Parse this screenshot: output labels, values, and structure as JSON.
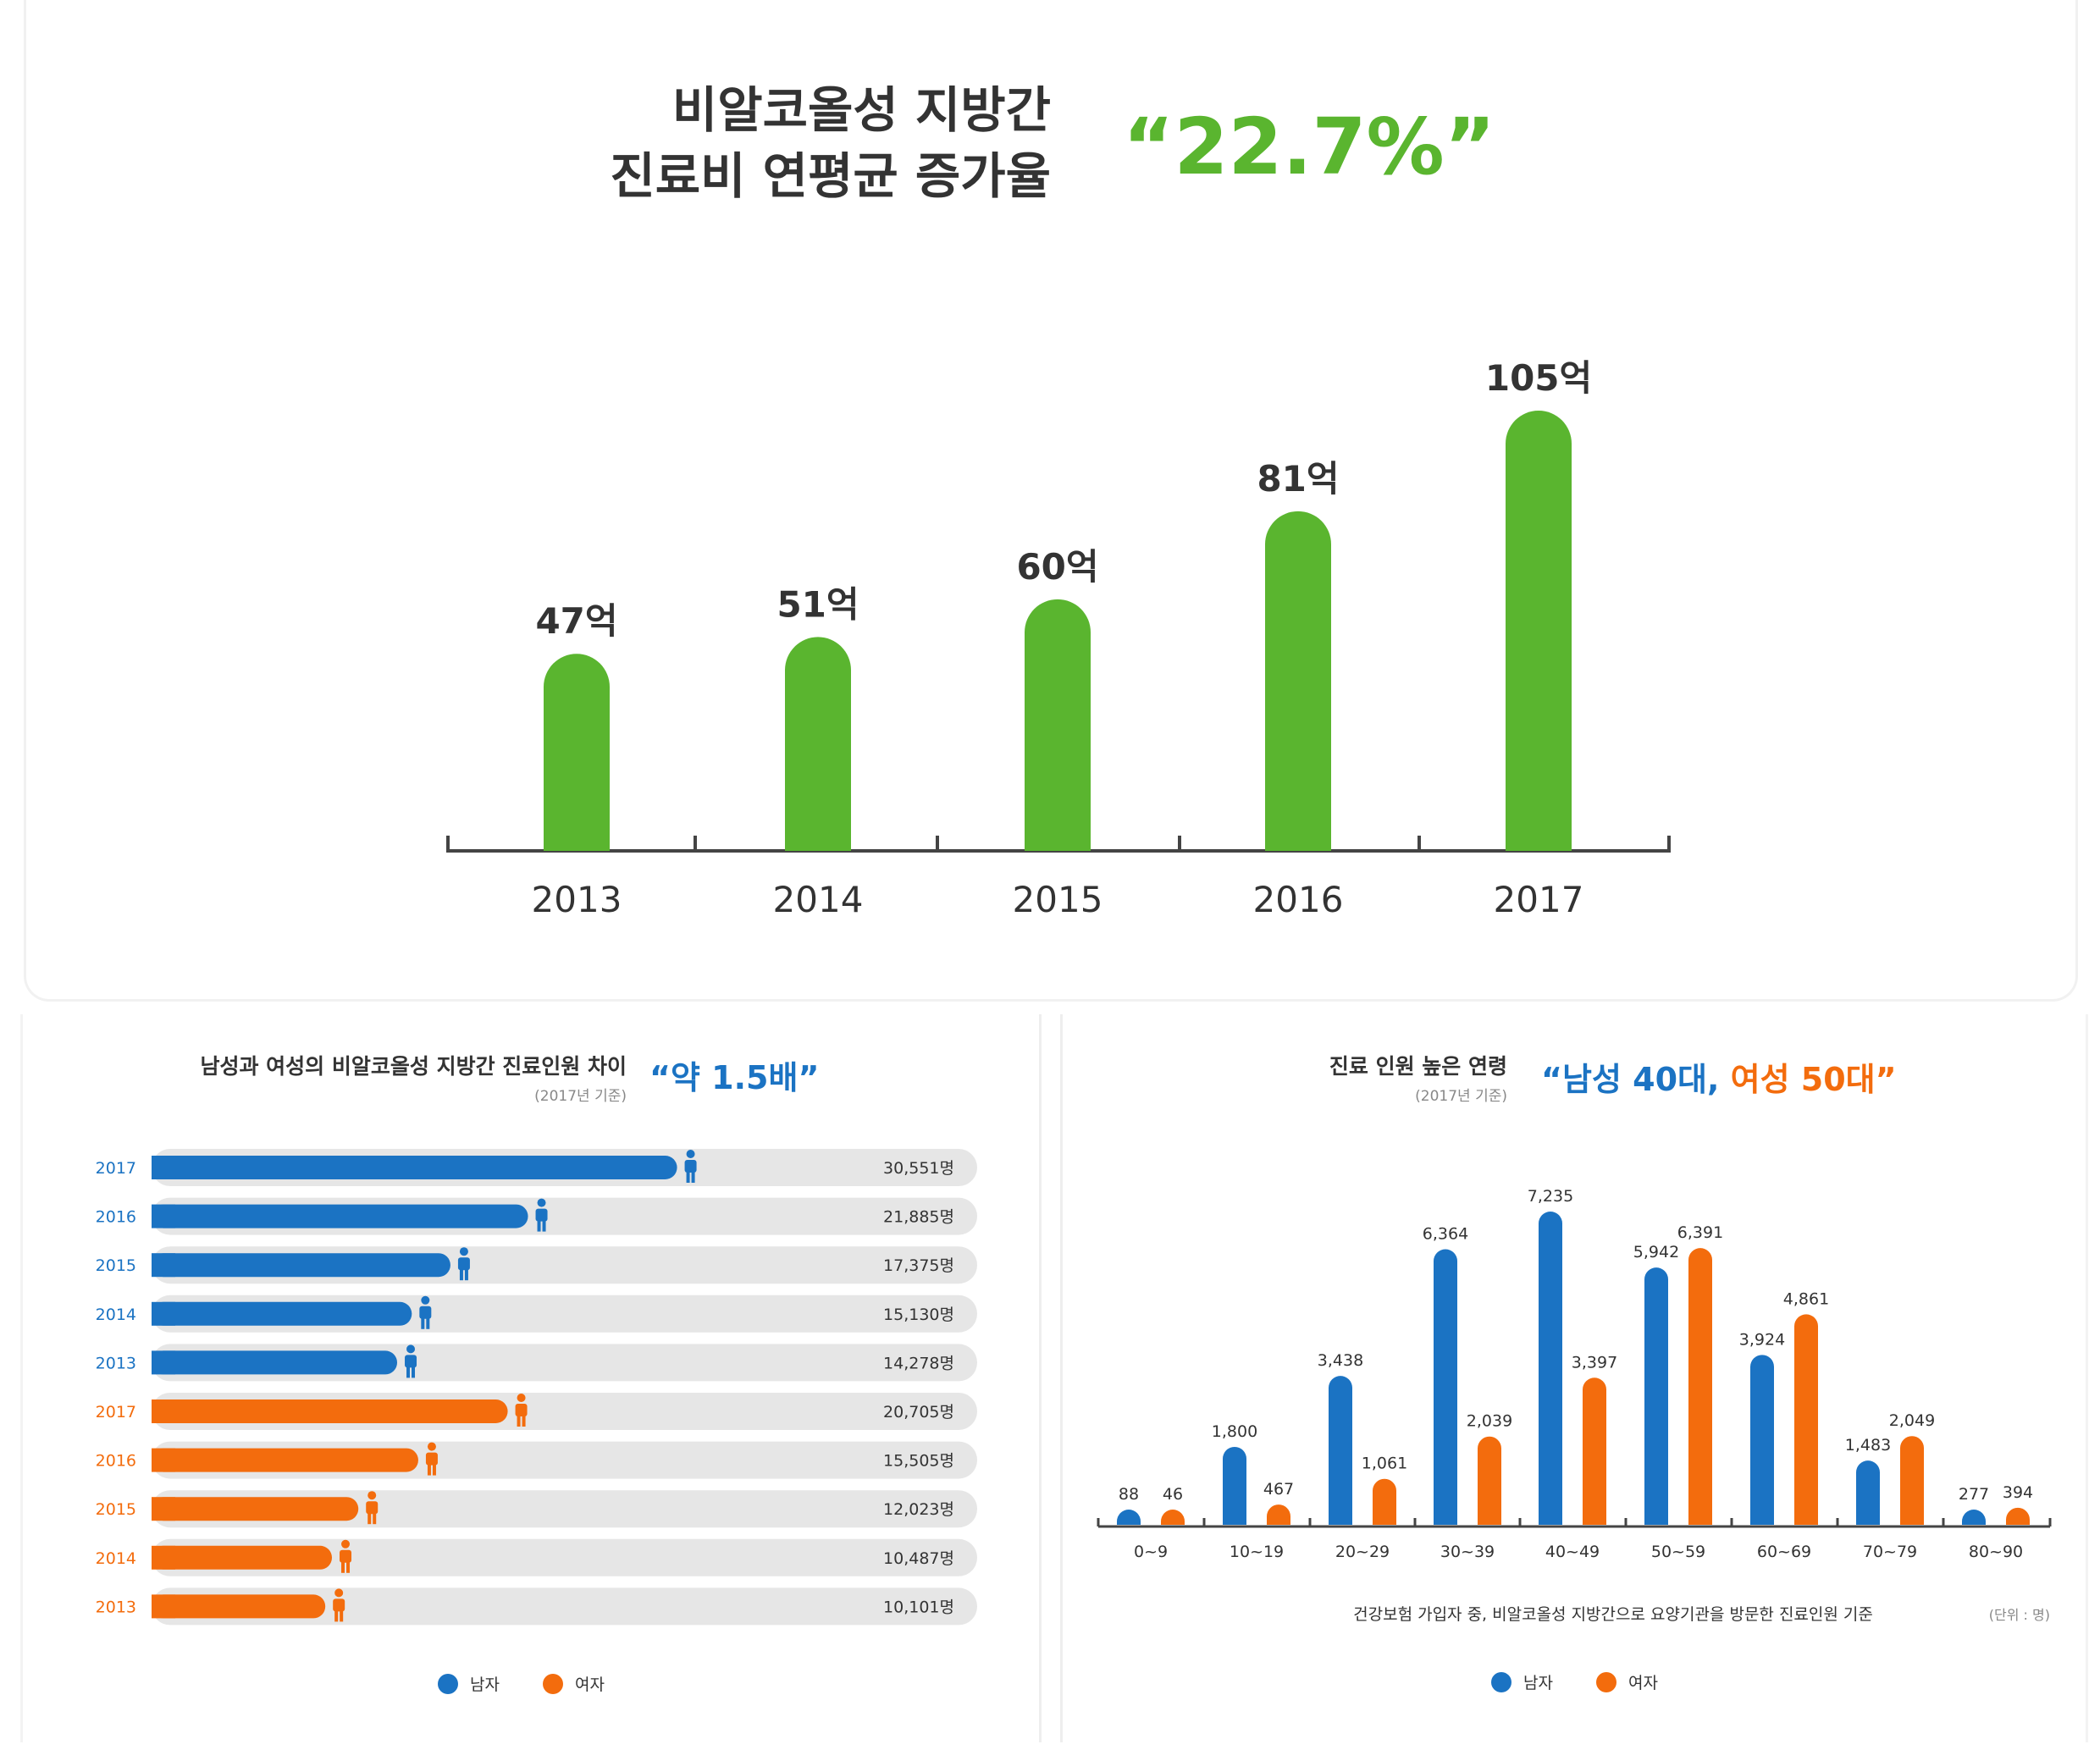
{
  "colors": {
    "green": "#5ab52f",
    "blue": "#1b73c3",
    "orange": "#f36c0d",
    "track": "#e6e6e6",
    "axis": "#444444",
    "text": "#333333",
    "light_text": "#888888"
  },
  "top": {
    "title_line1": "비알코올성 지방간",
    "title_line2": "진료비 연평균 증가율",
    "highlight": "“22.7%”"
  },
  "left": {
    "title": "남성과 여성의 비알코올성 지방간 진료인원 차이",
    "subtitle": "(2017년 기준)",
    "highlight": "“약 1.5배”",
    "legend_male": "남자",
    "legend_female": "여자"
  },
  "right": {
    "title": "진료 인원 높은 연령",
    "subtitle": "(2017년 기준)",
    "highlight_open": "“",
    "highlight_male": "남성 40대,",
    "highlight_female": " 여성 50대",
    "highlight_close": "”",
    "note": "건강보험 가입자 중, 비알코올성 지방간으로 요양기관을 방문한 진료인원 기준",
    "unit": "(단위 : 명)",
    "legend_male": "남자",
    "legend_female": "여자"
  },
  "chart_data": [
    {
      "type": "bar",
      "title": "비알코올성 지방간 진료비",
      "categories": [
        "2013",
        "2014",
        "2015",
        "2016",
        "2017"
      ],
      "values": [
        47,
        51,
        60,
        81,
        105
      ],
      "value_labels": [
        "47억",
        "51억",
        "60억",
        "81억",
        "105억"
      ],
      "unit": "억",
      "ylim": [
        0,
        115
      ]
    },
    {
      "type": "bar",
      "orientation": "horizontal",
      "title": "남성과 여성의 비알코올성 지방간 진료인원 차이",
      "max": 48000,
      "rows": [
        {
          "year": "2017",
          "sex": "male",
          "value": 30551,
          "label": "30,551명"
        },
        {
          "year": "2016",
          "sex": "male",
          "value": 21885,
          "label": "21,885명"
        },
        {
          "year": "2015",
          "sex": "male",
          "value": 17375,
          "label": "17,375명"
        },
        {
          "year": "2014",
          "sex": "male",
          "value": 15130,
          "label": "15,130명"
        },
        {
          "year": "2013",
          "sex": "male",
          "value": 14278,
          "label": "14,278명"
        },
        {
          "year": "2017",
          "sex": "female",
          "value": 20705,
          "label": "20,705명"
        },
        {
          "year": "2016",
          "sex": "female",
          "value": 15505,
          "label": "15,505명"
        },
        {
          "year": "2015",
          "sex": "female",
          "value": 12023,
          "label": "12,023명"
        },
        {
          "year": "2014",
          "sex": "female",
          "value": 10487,
          "label": "10,487명"
        },
        {
          "year": "2013",
          "sex": "female",
          "value": 10101,
          "label": "10,101명"
        }
      ]
    },
    {
      "type": "bar",
      "title": "진료 인원 높은 연령",
      "categories": [
        "0~9",
        "10~19",
        "20~29",
        "30~39",
        "40~49",
        "50~59",
        "60~69",
        "70~79",
        "80~90"
      ],
      "series": [
        {
          "name": "남자",
          "values": [
            88,
            1800,
            3438,
            6364,
            7235,
            5942,
            3924,
            1483,
            277
          ],
          "labels": [
            "88",
            "1,800",
            "3,438",
            "6,364",
            "7,235",
            "5,942",
            "3,924",
            "1,483",
            "277"
          ]
        },
        {
          "name": "여자",
          "values": [
            46,
            467,
            1061,
            2039,
            3397,
            6391,
            4861,
            2049,
            394
          ],
          "labels": [
            "46",
            "467",
            "1,061",
            "2,039",
            "3,397",
            "6,391",
            "4,861",
            "2,049",
            "394"
          ]
        }
      ],
      "ylim": [
        0,
        7400
      ]
    }
  ]
}
